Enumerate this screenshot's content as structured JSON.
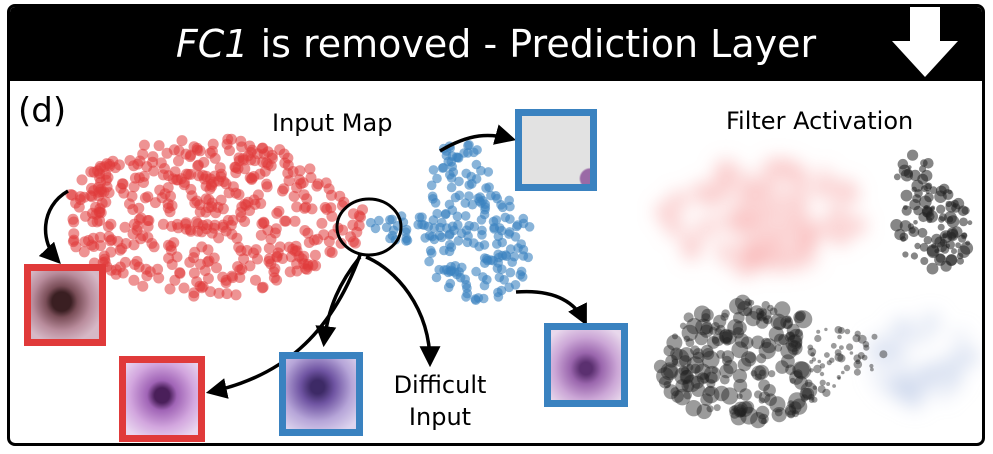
{
  "title": {
    "italic": "FC1",
    "rest": " is removed - Prediction Layer"
  },
  "panel_label": "(d)",
  "labels": {
    "input_map": "Input Map",
    "filter_activation": "Filter Activation",
    "difficult_line1": "Difficult",
    "difficult_line2": "Input"
  },
  "colors": {
    "red": "#e03a3a",
    "blue": "#3a82c0",
    "dark": "#222222"
  }
}
